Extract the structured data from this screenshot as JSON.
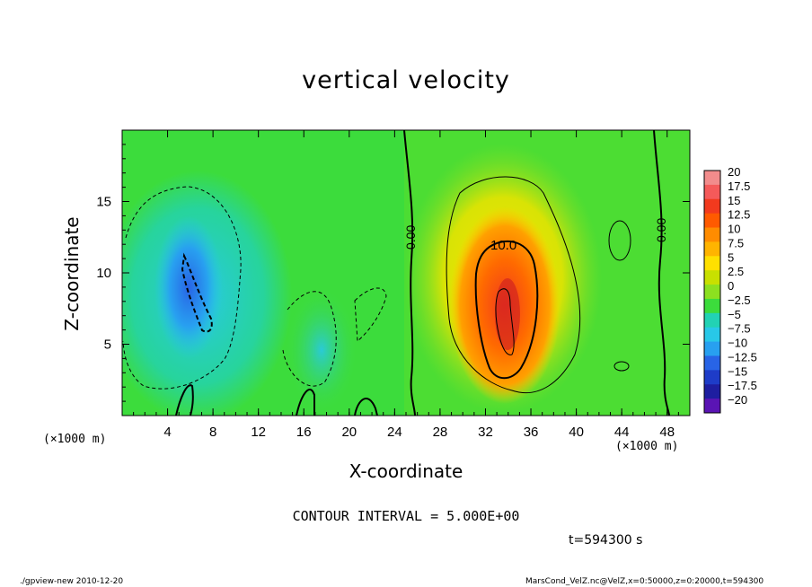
{
  "chart_data": {
    "type": "heatmap",
    "title": "vertical velocity",
    "xlabel": "X-coordinate",
    "ylabel": "Z-coordinate",
    "x_unit": "(×1000 m)",
    "xlim": [
      0,
      50
    ],
    "ylim": [
      0,
      20
    ],
    "x_ticks": [
      "4",
      "8",
      "12",
      "16",
      "20",
      "24",
      "28",
      "32",
      "36",
      "40",
      "44",
      "48"
    ],
    "y_ticks": [
      "5",
      "10",
      "15"
    ],
    "contour_interval": "CONTOUR INTERVAL = 5.000E+00",
    "contour_labels": [
      "0.00",
      "10.0",
      "0.00"
    ],
    "colorbar": {
      "labels": [
        "20",
        "17.5",
        "15",
        "12.5",
        "10",
        "7.5",
        "5",
        "2.5",
        "0",
        "−2.5",
        "−5",
        "−7.5",
        "−10",
        "−12.5",
        "−15",
        "−17.5",
        "−20"
      ],
      "colors": [
        "#f28c8c",
        "#f55a5a",
        "#f23a1e",
        "#ff5a00",
        "#ff8c00",
        "#ffb400",
        "#ffe000",
        "#c8e000",
        "#8ce020",
        "#3cdc3c",
        "#22d2b4",
        "#28c8e8",
        "#28a0f0",
        "#2864e6",
        "#1e3cc8",
        "#1e1ea0",
        "#5a14b4"
      ]
    },
    "features": [
      {
        "kind": "downdraft",
        "x": 6,
        "z": 9,
        "peak": -12
      },
      {
        "kind": "updraft",
        "x": 33,
        "z": 8,
        "peak": 15
      }
    ]
  },
  "annotations": {
    "time": "t=594300 s",
    "program": "./gpview-new   2010-12-20",
    "file": "MarsCond_VelZ.nc@VelZ,x=0:50000,z=0:20000,t=594300"
  }
}
